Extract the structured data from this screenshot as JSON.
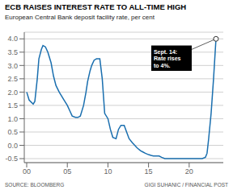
{
  "chart_data": {
    "type": "line",
    "title": "ECB RAISES INTEREST RATE TO ALL-TIME HIGH",
    "subtitle": "European Central Bank deposit facility rate, per cent",
    "source": [
      "SOURCE: BLOOMBERG",
      "GIGI SUHANIC / FINANCIAL POST"
    ],
    "color": "#1a6faf",
    "grid": true,
    "xlim": [
      -0.3,
      24.2
    ],
    "xticks": [
      {
        "value": 0,
        "label": "00"
      },
      {
        "value": 5,
        "label": "05"
      },
      {
        "value": 10,
        "label": "10"
      },
      {
        "value": 15,
        "label": "15"
      },
      {
        "value": 20,
        "label": "20"
      }
    ],
    "ylim": [
      -0.65,
      4.25
    ],
    "yticks": [
      -0.5,
      {
        "value": 0.0,
        "label": "0.0"
      },
      0.5,
      {
        "value": 1.0,
        "label": "1.0"
      },
      1.5,
      {
        "value": 2.0,
        "label": "2.0"
      },
      2.5,
      {
        "value": 3.0,
        "label": "3.0"
      },
      3.5,
      {
        "value": 4.0,
        "label": "4.0"
      }
    ],
    "annotations": [
      {
        "text": "Sept. 14:\nRate rises\nto 4%.",
        "x": 23.3,
        "y": 4.0
      }
    ],
    "x": [
      0,
      0.3,
      0.8,
      1.0,
      1.3,
      1.5,
      1.8,
      2.0,
      2.3,
      2.6,
      3.0,
      3.3,
      3.6,
      4.0,
      4.3,
      4.6,
      5.0,
      5.3,
      5.6,
      6.0,
      6.3,
      6.6,
      7.0,
      7.3,
      7.5,
      7.8,
      8.0,
      8.3,
      8.6,
      9.0,
      9.3,
      9.6,
      10.0,
      10.3,
      10.6,
      11.0,
      11.3,
      11.6,
      12.0,
      12.3,
      12.6,
      13.0,
      13.3,
      13.6,
      14.0,
      14.3,
      14.6,
      15.0,
      15.3,
      15.6,
      16.0,
      16.3,
      16.6,
      17.0,
      17.3,
      17.6,
      18.0,
      18.3,
      18.6,
      19.0,
      19.3,
      19.6,
      20.0,
      20.3,
      20.6,
      21.0,
      21.3,
      21.6,
      22.0,
      22.2,
      22.4,
      22.7,
      23.0,
      23.3
    ],
    "values": [
      2.0,
      1.7,
      1.55,
      1.65,
      2.5,
      3.25,
      3.6,
      3.75,
      3.7,
      3.5,
      3.1,
      2.6,
      2.25,
      2.0,
      1.85,
      1.7,
      1.5,
      1.3,
      1.1,
      1.05,
      1.05,
      1.1,
      1.5,
      2.0,
      2.4,
      2.8,
      3.0,
      3.2,
      3.25,
      3.25,
      2.5,
      1.2,
      1.0,
      0.6,
      0.3,
      0.25,
      0.6,
      0.75,
      0.75,
      0.5,
      0.25,
      0.1,
      0.0,
      -0.1,
      -0.2,
      -0.25,
      -0.3,
      -0.35,
      -0.38,
      -0.4,
      -0.4,
      -0.4,
      -0.45,
      -0.5,
      -0.5,
      -0.5,
      -0.5,
      -0.5,
      -0.5,
      -0.5,
      -0.5,
      -0.5,
      -0.5,
      -0.5,
      -0.5,
      -0.5,
      -0.5,
      -0.5,
      -0.45,
      -0.3,
      0.25,
      1.2,
      2.5,
      4.0
    ]
  }
}
